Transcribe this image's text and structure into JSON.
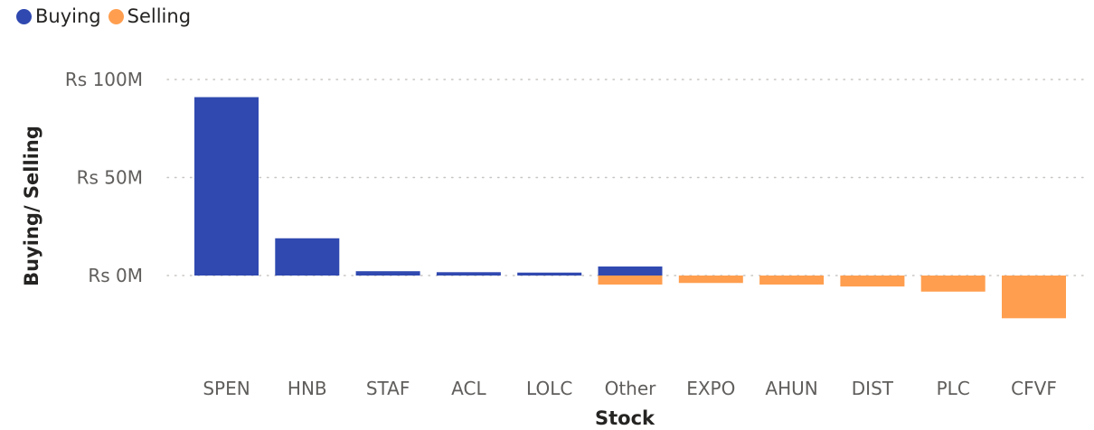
{
  "colors": {
    "buying": "#3049B0",
    "selling": "#FF9E4F",
    "grid": "#C8C6C4",
    "text": "#605E5C",
    "axis_title": "#252423"
  },
  "legend": {
    "items": [
      {
        "label": "Buying",
        "color": "#3049B0"
      },
      {
        "label": "Selling",
        "color": "#FF9E4F"
      }
    ]
  },
  "chart_data": {
    "type": "bar",
    "title": "",
    "xlabel": "Stock",
    "ylabel": "Buying/ Selling",
    "ylim": [
      -35,
      100
    ],
    "y_unit": "Rs M",
    "y_ticks": [
      {
        "value": 0,
        "label": "Rs 0M"
      },
      {
        "value": 50,
        "label": "Rs 50M"
      },
      {
        "value": 100,
        "label": "Rs 100M"
      }
    ],
    "grid": "dotted-horizontal",
    "legend_position": "top-left",
    "categories": [
      "SPEN",
      "HNB",
      "STAF",
      "ACL",
      "LOLC",
      "Other",
      "EXPO",
      "AHUN",
      "DIST",
      "PLC",
      "CFVF"
    ],
    "series": [
      {
        "name": "Buying",
        "values": [
          91,
          19,
          2.2,
          1.7,
          1.5,
          4.6,
          0,
          0,
          0,
          0,
          0
        ]
      },
      {
        "name": "Selling",
        "values": [
          0,
          0,
          0,
          0,
          0,
          -4.6,
          -3.8,
          -4.6,
          -5.6,
          -8.2,
          -21.8
        ]
      }
    ]
  }
}
